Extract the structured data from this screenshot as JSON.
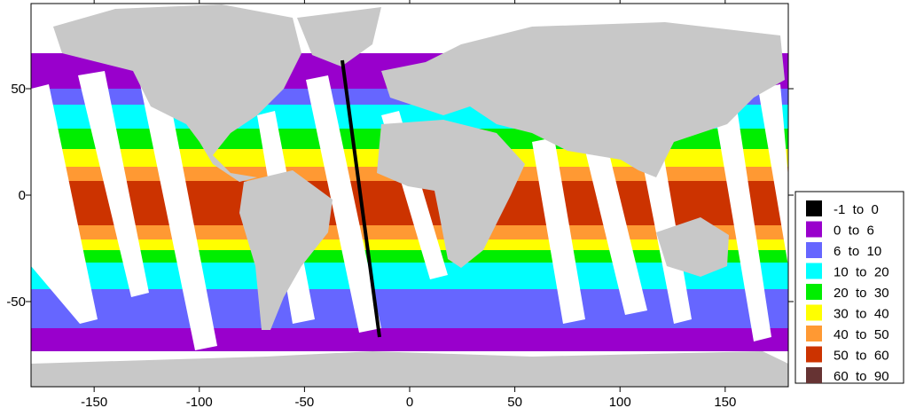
{
  "map": {
    "xlim": [
      -180,
      180
    ],
    "ylim": [
      -90,
      90
    ],
    "xticks": [
      -150,
      -100,
      -50,
      0,
      50,
      100,
      150
    ],
    "yticks": [
      -50,
      0,
      50
    ],
    "legend": [
      {
        "label": "-1  to  0",
        "color": "#000000"
      },
      {
        "label": "0  to  6",
        "color": "#9900cc"
      },
      {
        "label": "6  to  10",
        "color": "#6666ff"
      },
      {
        "label": "10  to  20",
        "color": "#00ffff"
      },
      {
        "label": "20  to  30",
        "color": "#00ee00"
      },
      {
        "label": "30  to  40",
        "color": "#ffff00"
      },
      {
        "label": "40  to  50",
        "color": "#ff9933"
      },
      {
        "label": "50  to  60",
        "color": "#cc3300"
      },
      {
        "label": "60  to  90",
        "color": "#663333"
      }
    ]
  }
}
